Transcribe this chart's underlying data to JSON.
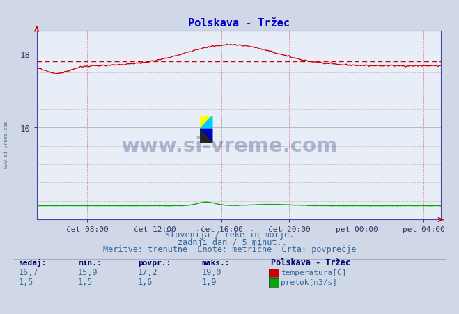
{
  "title": "Polskava - Tržec",
  "title_color": "#0000cc",
  "bg_color": "#d0d8e8",
  "plot_bg_color": "#e8eef8",
  "grid_color_major": "#aaaaaa",
  "x_tick_labels": [
    "čet 08:00",
    "čet 12:00",
    "čet 16:00",
    "čet 20:00",
    "pet 00:00",
    "pet 04:00"
  ],
  "x_tick_positions": [
    0.125,
    0.292,
    0.458,
    0.625,
    0.792,
    0.958
  ],
  "y_ticks": [
    10,
    18
  ],
  "ylim": [
    0,
    20.5
  ],
  "temp_avg": 17.2,
  "temp_min": 15.9,
  "temp_max": 19.0,
  "temp_current": 16.7,
  "flow_avg": 1.6,
  "flow_min": 1.5,
  "flow_max": 1.9,
  "flow_current": 1.5,
  "temp_color": "#cc0000",
  "flow_color": "#00aa00",
  "dashed_color": "#cc0000",
  "watermark_color": "#1a3a6e",
  "footer_line1": "Slovenija / reke in morje.",
  "footer_line2": "zadnji dan / 5 minut.",
  "footer_line3": "Meritve: trenutne  Enote: metrične  Črta: povprečje",
  "legend_title": "Polskava - Tržec",
  "legend_items": [
    "temperatura[C]",
    "pretok[m3/s]"
  ],
  "legend_colors": [
    "#cc0000",
    "#00aa00"
  ],
  "stats_headers": [
    "sedaj:",
    "min.:",
    "povpr.:",
    "maks.:"
  ],
  "stats_temp": [
    "16,7",
    "15,9",
    "17,2",
    "19,0"
  ],
  "stats_flow": [
    "1,5",
    "1,5",
    "1,6",
    "1,9"
  ]
}
